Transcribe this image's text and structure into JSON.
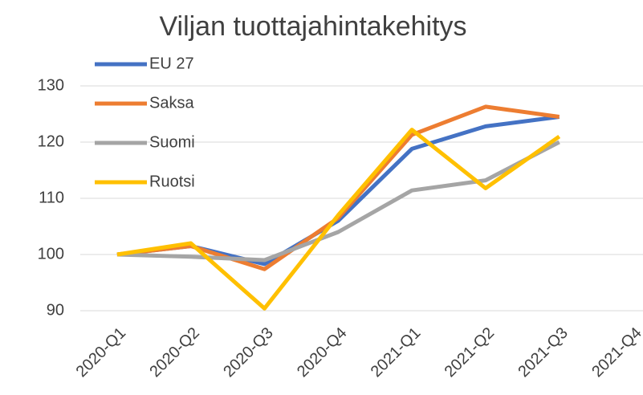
{
  "chart_data": {
    "type": "line",
    "title": "Viljan tuottajahintakehitys",
    "categories": [
      "2020-Q1",
      "2020-Q2",
      "2020-Q3",
      "2020-Q4",
      "2021-Q1",
      "2021-Q2",
      "2021-Q3",
      "2021-Q4"
    ],
    "series": [
      {
        "name": "EU 27",
        "color": "#4472c4",
        "values": [
          100,
          101.5,
          98.3,
          106,
          118.8,
          122.8,
          124.5,
          null
        ]
      },
      {
        "name": "Saksa",
        "color": "#ed7d31",
        "values": [
          100,
          101.5,
          97.4,
          106.5,
          121.3,
          126.3,
          124.5,
          null
        ]
      },
      {
        "name": "Suomi",
        "color": "#a5a5a5",
        "values": [
          100,
          99.6,
          99,
          104,
          111.4,
          113.2,
          120,
          null
        ]
      },
      {
        "name": "Ruotsi",
        "color": "#ffc000",
        "values": [
          100,
          102,
          90.4,
          107,
          122.2,
          111.8,
          121,
          null
        ]
      }
    ],
    "ylim": [
      90,
      130
    ],
    "yticks": [
      90,
      100,
      110,
      120,
      130
    ],
    "grid": true,
    "legend": "top-left"
  }
}
